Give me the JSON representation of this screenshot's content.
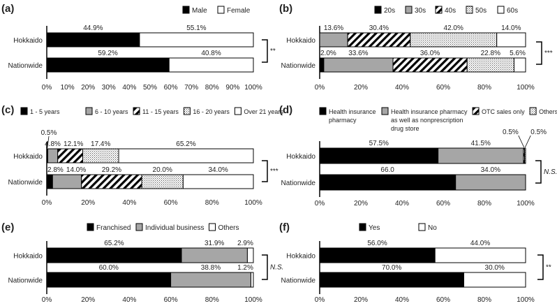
{
  "chart_data": [
    {
      "type": "bar",
      "stacked": true,
      "orientation": "horizontal",
      "panel_label": "(a)",
      "categories": [
        "Hokkaido",
        "Nationwide"
      ],
      "series": [
        {
          "name": "Male",
          "fill": "black",
          "values": [
            44.9,
            59.2
          ]
        },
        {
          "name": "Female",
          "fill": "white",
          "values": [
            55.1,
            40.8
          ]
        }
      ],
      "xlim": [
        0,
        100
      ],
      "xticks": [
        "0%",
        "10%",
        "20%",
        "30%",
        "40%",
        "50%",
        "60%",
        "70%",
        "80%",
        "90%",
        "100%"
      ],
      "significance": "**"
    },
    {
      "type": "bar",
      "stacked": true,
      "orientation": "horizontal",
      "panel_label": "(b)",
      "categories": [
        "Hokkaido",
        "Nationwide"
      ],
      "series": [
        {
          "name": "20s",
          "fill": "black",
          "values": [
            0,
            2.0
          ]
        },
        {
          "name": "30s",
          "fill": "gray",
          "values": [
            13.6,
            33.6
          ]
        },
        {
          "name": "40s",
          "fill": "hatch",
          "values": [
            30.4,
            36.0
          ]
        },
        {
          "name": "50s",
          "fill": "dots",
          "values": [
            42.0,
            22.8
          ]
        },
        {
          "name": "60s",
          "fill": "white",
          "values": [
            14.0,
            5.6
          ]
        }
      ],
      "xlim": [
        0,
        100
      ],
      "xticks": [
        "0%",
        "20%",
        "40%",
        "60%",
        "80%",
        "100%"
      ],
      "significance": "***"
    },
    {
      "type": "bar",
      "stacked": true,
      "orientation": "horizontal",
      "panel_label": "(c)",
      "categories": [
        "Hokkaido",
        "Nationwide"
      ],
      "series": [
        {
          "name": "1 - 5 years",
          "fill": "black",
          "values": [
            0.5,
            2.8
          ]
        },
        {
          "name": "6 - 10 years",
          "fill": "gray",
          "values": [
            4.8,
            14.0
          ]
        },
        {
          "name": "11 - 15 years",
          "fill": "hatch",
          "values": [
            12.1,
            29.2
          ]
        },
        {
          "name": "16 - 20 years",
          "fill": "dots",
          "values": [
            17.4,
            20.0
          ]
        },
        {
          "name": "Over 21 years",
          "fill": "white",
          "values": [
            65.2,
            34.0
          ]
        }
      ],
      "xlim": [
        0,
        100
      ],
      "xticks": [
        "0%",
        "20%",
        "40%",
        "60%",
        "80%",
        "100%"
      ],
      "significance": "***"
    },
    {
      "type": "bar",
      "stacked": true,
      "orientation": "horizontal",
      "panel_label": "(d)",
      "categories": [
        "Hokkaido",
        "Nationwide"
      ],
      "series": [
        {
          "name": "Health insurance pharmacy",
          "fill": "black",
          "values": [
            57.5,
            66.0
          ],
          "value_labels": [
            "57.5%",
            "66.0"
          ]
        },
        {
          "name": "Health insurance pharmacy as well as nonprescription drug store",
          "fill": "gray",
          "values": [
            41.5,
            34.0
          ]
        },
        {
          "name": "OTC sales only",
          "fill": "hatch",
          "values": [
            0.5,
            0
          ]
        },
        {
          "name": "Others",
          "fill": "dots",
          "values": [
            0.5,
            0
          ]
        }
      ],
      "xlim": [
        0,
        100
      ],
      "xticks": [
        "0%",
        "20%",
        "40%",
        "60%",
        "80%",
        "100%"
      ],
      "significance": "N.S."
    },
    {
      "type": "bar",
      "stacked": true,
      "orientation": "horizontal",
      "panel_label": "(e)",
      "categories": [
        "Hokkaido",
        "Nationwide"
      ],
      "series": [
        {
          "name": "Franchised",
          "fill": "black",
          "values": [
            65.2,
            60.0
          ]
        },
        {
          "name": "Individual business",
          "fill": "gray",
          "values": [
            31.9,
            38.8
          ]
        },
        {
          "name": "Others",
          "fill": "white",
          "values": [
            2.9,
            1.2
          ]
        }
      ],
      "xlim": [
        0,
        100
      ],
      "xticks": [
        "0%",
        "20%",
        "40%",
        "60%",
        "80%",
        "100%"
      ],
      "significance": "N.S."
    },
    {
      "type": "bar",
      "stacked": true,
      "orientation": "horizontal",
      "panel_label": "(f)",
      "categories": [
        "Hokkaido",
        "Nationwide"
      ],
      "series": [
        {
          "name": "Yes",
          "fill": "black",
          "values": [
            56.0,
            70.0
          ]
        },
        {
          "name": "No",
          "fill": "white",
          "values": [
            44.0,
            30.0
          ]
        }
      ],
      "xlim": [
        0,
        100
      ],
      "xticks": [
        "0%",
        "20%",
        "40%",
        "60%",
        "80%",
        "100%"
      ],
      "significance": "**"
    }
  ]
}
